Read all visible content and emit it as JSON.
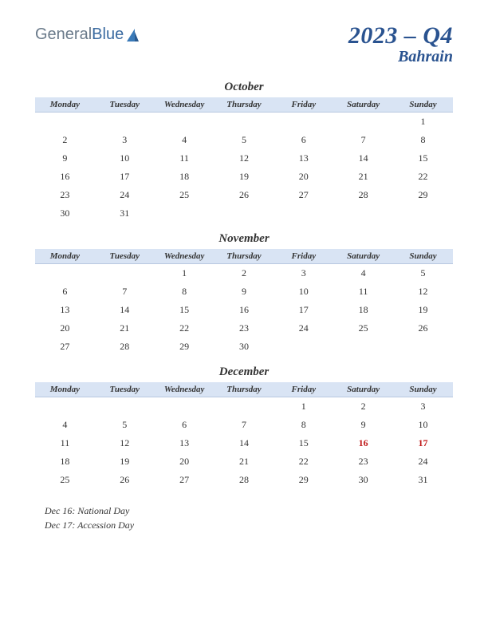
{
  "logo": {
    "part1": "General",
    "part2": "Blue"
  },
  "title": {
    "main": "2023 – Q4",
    "sub": "Bahrain"
  },
  "weekdays": [
    "Monday",
    "Tuesday",
    "Wednesday",
    "Thursday",
    "Friday",
    "Saturday",
    "Sunday"
  ],
  "colors": {
    "header_bg": "#d9e4f4",
    "accent": "#2a5390",
    "holiday": "#c01818",
    "text": "#333333",
    "background": "#ffffff"
  },
  "months": [
    {
      "name": "October",
      "weeks": [
        [
          "",
          "",
          "",
          "",
          "",
          "",
          "1"
        ],
        [
          "2",
          "3",
          "4",
          "5",
          "6",
          "7",
          "8"
        ],
        [
          "9",
          "10",
          "11",
          "12",
          "13",
          "14",
          "15"
        ],
        [
          "16",
          "17",
          "18",
          "19",
          "20",
          "21",
          "22"
        ],
        [
          "23",
          "24",
          "25",
          "26",
          "27",
          "28",
          "29"
        ],
        [
          "30",
          "31",
          "",
          "",
          "",
          "",
          ""
        ]
      ],
      "holidays": []
    },
    {
      "name": "November",
      "weeks": [
        [
          "",
          "",
          "1",
          "2",
          "3",
          "4",
          "5"
        ],
        [
          "6",
          "7",
          "8",
          "9",
          "10",
          "11",
          "12"
        ],
        [
          "13",
          "14",
          "15",
          "16",
          "17",
          "18",
          "19"
        ],
        [
          "20",
          "21",
          "22",
          "23",
          "24",
          "25",
          "26"
        ],
        [
          "27",
          "28",
          "29",
          "30",
          "",
          "",
          ""
        ]
      ],
      "holidays": []
    },
    {
      "name": "December",
      "weeks": [
        [
          "",
          "",
          "",
          "",
          "1",
          "2",
          "3"
        ],
        [
          "4",
          "5",
          "6",
          "7",
          "8",
          "9",
          "10"
        ],
        [
          "11",
          "12",
          "13",
          "14",
          "15",
          "16",
          "17"
        ],
        [
          "18",
          "19",
          "20",
          "21",
          "22",
          "23",
          "24"
        ],
        [
          "25",
          "26",
          "27",
          "28",
          "29",
          "30",
          "31"
        ]
      ],
      "holidays": [
        "16",
        "17"
      ]
    }
  ],
  "notes": [
    "Dec 16: National Day",
    "Dec 17: Accession Day"
  ]
}
